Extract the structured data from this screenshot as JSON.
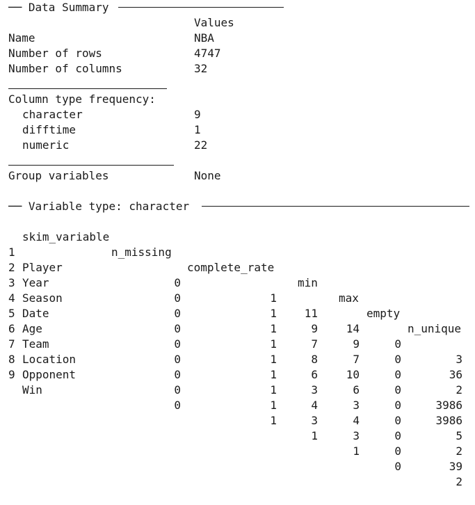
{
  "data_summary": {
    "header": "Data Summary",
    "values_label": "Values",
    "rows": [
      {
        "label": "Name",
        "value": "NBA"
      },
      {
        "label": "Number of rows",
        "value": "4747"
      },
      {
        "label": "Number of columns",
        "value": "32"
      }
    ]
  },
  "column_types": {
    "header": "Column type frequency:",
    "rows": [
      {
        "label": "character",
        "value": "9"
      },
      {
        "label": "difftime",
        "value": "1"
      },
      {
        "label": "numeric",
        "value": "22"
      }
    ]
  },
  "group_variables": {
    "label": "Group variables",
    "value": "None"
  },
  "variable_type": {
    "header": "Variable type: character",
    "columns": [
      "skim_variable",
      "n_missing",
      "complete_rate",
      "min",
      "max",
      "empty",
      "n_unique"
    ],
    "rows": [
      {
        "idx": "1",
        "skim_variable": "Player",
        "n_missing": "0",
        "complete_rate": "1",
        "min": "11",
        "max": "14",
        "empty": "0",
        "n_unique": "3"
      },
      {
        "idx": "2",
        "skim_variable": "Year",
        "n_missing": "0",
        "complete_rate": "1",
        "min": "9",
        "max": "9",
        "empty": "0",
        "n_unique": "36"
      },
      {
        "idx": "3",
        "skim_variable": "Season",
        "n_missing": "0",
        "complete_rate": "1",
        "min": "7",
        "max": "7",
        "empty": "0",
        "n_unique": "2"
      },
      {
        "idx": "4",
        "skim_variable": "Date",
        "n_missing": "0",
        "complete_rate": "1",
        "min": "8",
        "max": "10",
        "empty": "0",
        "n_unique": "3986"
      },
      {
        "idx": "5",
        "skim_variable": "Age",
        "n_missing": "0",
        "complete_rate": "1",
        "min": "6",
        "max": "6",
        "empty": "0",
        "n_unique": "3986"
      },
      {
        "idx": "6",
        "skim_variable": "Team",
        "n_missing": "0",
        "complete_rate": "1",
        "min": "3",
        "max": "3",
        "empty": "0",
        "n_unique": "5"
      },
      {
        "idx": "7",
        "skim_variable": "Location",
        "n_missing": "0",
        "complete_rate": "1",
        "min": "4",
        "max": "4",
        "empty": "0",
        "n_unique": "2"
      },
      {
        "idx": "8",
        "skim_variable": "Opponent",
        "n_missing": "0",
        "complete_rate": "1",
        "min": "3",
        "max": "3",
        "empty": "0",
        "n_unique": "39"
      },
      {
        "idx": "9",
        "skim_variable": "Win",
        "n_missing": "0",
        "complete_rate": "1",
        "min": "1",
        "max": "1",
        "empty": "0",
        "n_unique": "2"
      }
    ]
  }
}
